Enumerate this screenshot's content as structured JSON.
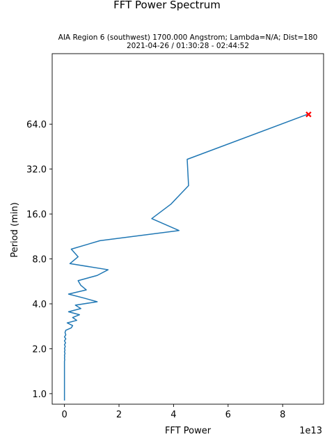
{
  "figure": {
    "suptitle": "FFT Power Spectrum",
    "subtitle_line1": "AIA Region 6 (southwest) 1700.000 Angstrom; Lambda=N/A; Dist=180",
    "subtitle_line2": "2021-04-26 / 01:30:28 - 02:44:52",
    "offset_text": "1e13"
  },
  "chart_data": {
    "type": "line",
    "title": "FFT Power Spectrum",
    "xlabel": "FFT Power",
    "ylabel": "Period (min)",
    "x_unit_multiplier": 10000000000000.0,
    "xlim": [
      -0.45,
      9.5
    ],
    "ylim": [
      0.85,
      190
    ],
    "y_scale": "log2",
    "xticks": [
      0,
      2,
      4,
      6,
      8
    ],
    "xtick_labels": [
      "0",
      "2",
      "4",
      "6",
      "8"
    ],
    "yticks": [
      1,
      2,
      4,
      8,
      16,
      32,
      64
    ],
    "ytick_labels": [
      "1.0",
      "2.0",
      "4.0",
      "8.0",
      "16.0",
      "32.0",
      "64.0"
    ],
    "grid": false,
    "series": [
      {
        "color": "#1f77b4",
        "points": [
          [
            8.9,
            74.4
          ],
          [
            4.5,
            37.2
          ],
          [
            4.55,
            24.8
          ],
          [
            3.9,
            18.6
          ],
          [
            3.2,
            14.9
          ],
          [
            4.2,
            12.4
          ],
          [
            1.3,
            10.6
          ],
          [
            0.25,
            9.3
          ],
          [
            0.5,
            8.27
          ],
          [
            0.2,
            7.44
          ],
          [
            1.6,
            6.77
          ],
          [
            1.2,
            6.2
          ],
          [
            0.5,
            5.72
          ],
          [
            0.6,
            5.32
          ],
          [
            0.8,
            4.96
          ],
          [
            0.15,
            4.65
          ],
          [
            0.7,
            4.38
          ],
          [
            1.2,
            4.13
          ],
          [
            0.4,
            3.92
          ],
          [
            0.6,
            3.72
          ],
          [
            0.15,
            3.54
          ],
          [
            0.55,
            3.38
          ],
          [
            0.3,
            3.24
          ],
          [
            0.45,
            3.1
          ],
          [
            0.1,
            2.98
          ],
          [
            0.3,
            2.86
          ],
          [
            0.25,
            2.76
          ],
          [
            0.05,
            2.66
          ],
          [
            0.02,
            2.57
          ],
          [
            0.05,
            2.48
          ],
          [
            0.0,
            2.4
          ],
          [
            0.05,
            2.33
          ],
          [
            0.0,
            2.26
          ],
          [
            0.04,
            2.19
          ],
          [
            0.0,
            2.13
          ],
          [
            0.03,
            2.07
          ],
          [
            0.0,
            2.01
          ],
          [
            0.02,
            1.96
          ],
          [
            0.0,
            1.91
          ],
          [
            0.02,
            1.86
          ],
          [
            0.0,
            1.81
          ],
          [
            0.01,
            1.77
          ],
          [
            0.0,
            1.73
          ],
          [
            0.01,
            1.69
          ],
          [
            0.0,
            1.65
          ],
          [
            0.0,
            1.55
          ],
          [
            0.0,
            1.4
          ],
          [
            0.0,
            1.25
          ],
          [
            0.0,
            1.1
          ],
          [
            0.0,
            1.0
          ],
          [
            0.0,
            0.9
          ]
        ]
      }
    ],
    "peak_marker": {
      "x": 8.95,
      "y": 74.4,
      "color": "#ff0000",
      "symbol": "X"
    }
  }
}
